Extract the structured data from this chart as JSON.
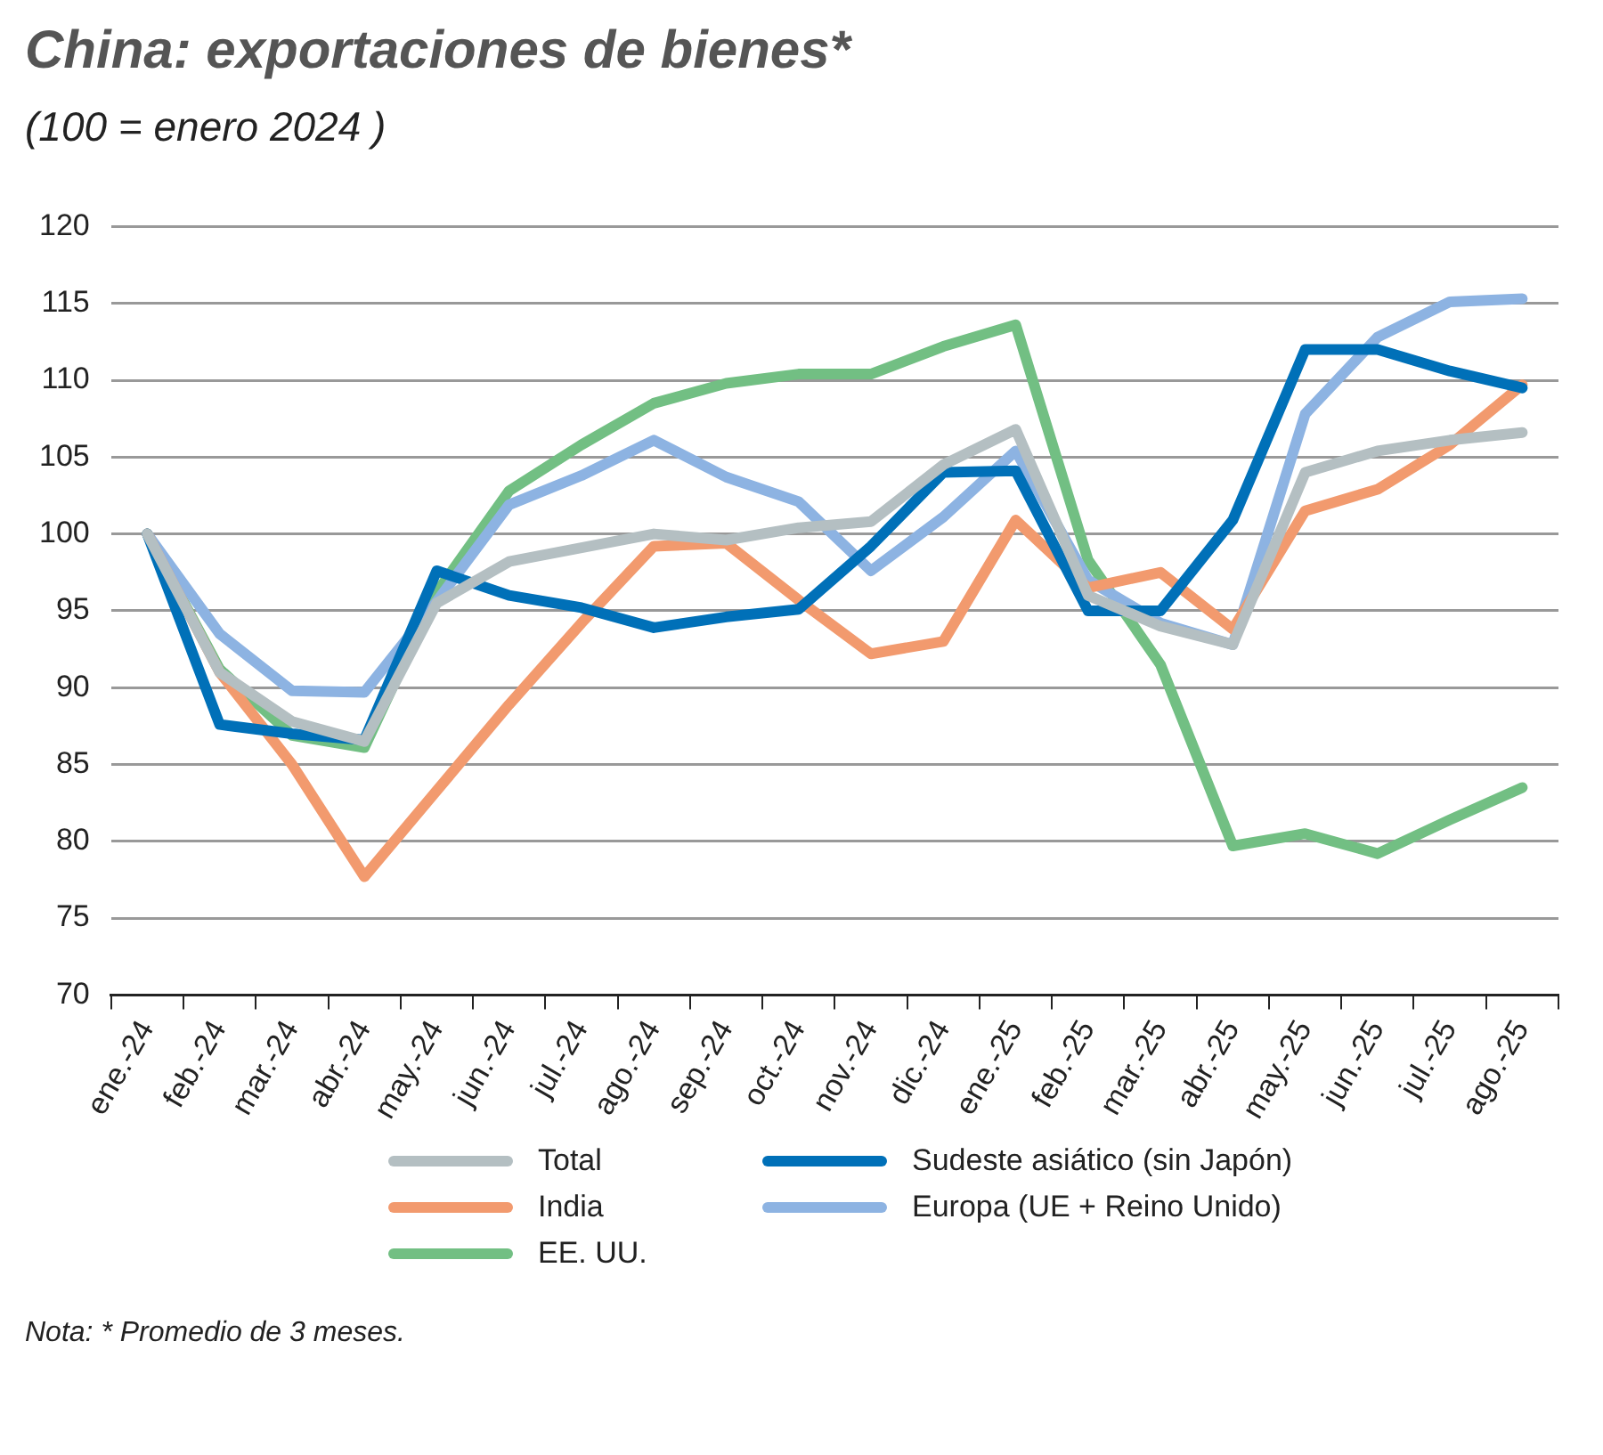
{
  "chart_data": {
    "type": "line",
    "title": "China: exportaciones de bienes*",
    "subtitle": "(100 = enero 2024 )",
    "categories": [
      "ene.-24",
      "feb.-24",
      "mar.-24",
      "abr.-24",
      "may.-24",
      "jun.-24",
      "jul.-24",
      "ago.-24",
      "sep.-24",
      "oct.-24",
      "nov.-24",
      "dic.-24",
      "ene.-25",
      "feb.-25",
      "mar.-25",
      "abr.-25",
      "may.-25",
      "jun.-25",
      "jul.-25",
      "ago.-25"
    ],
    "series": [
      {
        "name": "Total",
        "color": "#b4bfc2",
        "values": [
          100,
          91,
          87.8,
          86.5,
          95.5,
          98.2,
          99.1,
          100,
          99.6,
          100.4,
          100.8,
          104.5,
          106.8,
          96,
          94,
          92.8,
          104,
          105.4,
          106.1,
          106.6
        ]
      },
      {
        "name": "Sudeste asiático (sin Japón)",
        "color": "#0070b8",
        "values": [
          100,
          87.6,
          87,
          86.6,
          97.6,
          96,
          95.2,
          93.9,
          94.6,
          95.1,
          99.2,
          104,
          104.1,
          95,
          95,
          100.9,
          112,
          112,
          110.6,
          109.5
        ]
      },
      {
        "name": "India",
        "color": "#f29a6e",
        "values": [
          100,
          91,
          85,
          77.7,
          83.3,
          88.9,
          94.2,
          99.2,
          99.4,
          95.7,
          92.2,
          93,
          100.9,
          96.5,
          97.5,
          93.8,
          101.5,
          102.9,
          105.8,
          109.7
        ]
      },
      {
        "name": "Europa (UE + Reino Unido)",
        "color": "#8db3e2",
        "values": [
          100,
          93.5,
          89.8,
          89.7,
          95.6,
          101.9,
          103.8,
          106.1,
          103.7,
          102.1,
          97.6,
          101.1,
          105.4,
          97,
          94.2,
          92.8,
          107.8,
          112.8,
          115.1,
          115.3
        ]
      },
      {
        "name": "EE. UU.",
        "color": "#72bf83",
        "values": [
          100,
          91.2,
          86.9,
          86.1,
          96.2,
          102.8,
          105.8,
          108.5,
          109.8,
          110.4,
          110.4,
          112.2,
          113.6,
          98.3,
          91.5,
          79.7,
          80.5,
          79.2,
          81.4,
          83.5
        ]
      }
    ],
    "ylim": [
      70,
      120
    ],
    "yticks": [
      70,
      75,
      80,
      85,
      90,
      95,
      100,
      105,
      110,
      115,
      120
    ],
    "grid": "y",
    "legend": "bottom",
    "marker": "none",
    "line_style": "solid",
    "annotations": [
      "Nota: * Promedio de 3 meses."
    ]
  }
}
